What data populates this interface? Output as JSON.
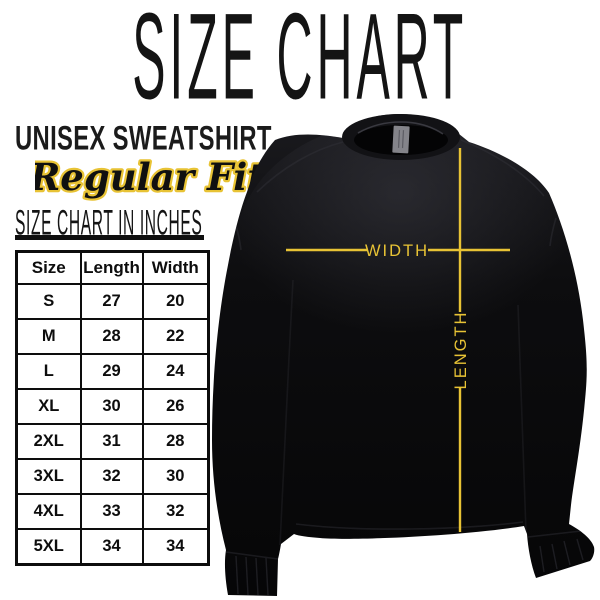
{
  "page": {
    "title": "SIZE CHART",
    "product_name": "UNISEX SWEATSHIRT",
    "fit_label": "Regular Fit",
    "table_heading": "SIZE CHART IN INCHES"
  },
  "table": {
    "headers": [
      "Size",
      "Length",
      "Width"
    ],
    "rows": [
      [
        "S",
        "27",
        "20"
      ],
      [
        "M",
        "28",
        "22"
      ],
      [
        "L",
        "29",
        "24"
      ],
      [
        "XL",
        "30",
        "26"
      ],
      [
        "2XL",
        "31",
        "28"
      ],
      [
        "3XL",
        "32",
        "30"
      ],
      [
        "4XL",
        "33",
        "32"
      ],
      [
        "5XL",
        "34",
        "34"
      ]
    ]
  },
  "diagram": {
    "garment": "black crewneck sweatshirt, front view",
    "width_label": "WIDTH",
    "length_label": "LENGTH"
  },
  "colors": {
    "accent_yellow": "#e8c335",
    "ink_black": "#111111",
    "garment_black": "#0a0a0c",
    "neck_tag_gray": "#84848a",
    "background": "#ffffff"
  }
}
